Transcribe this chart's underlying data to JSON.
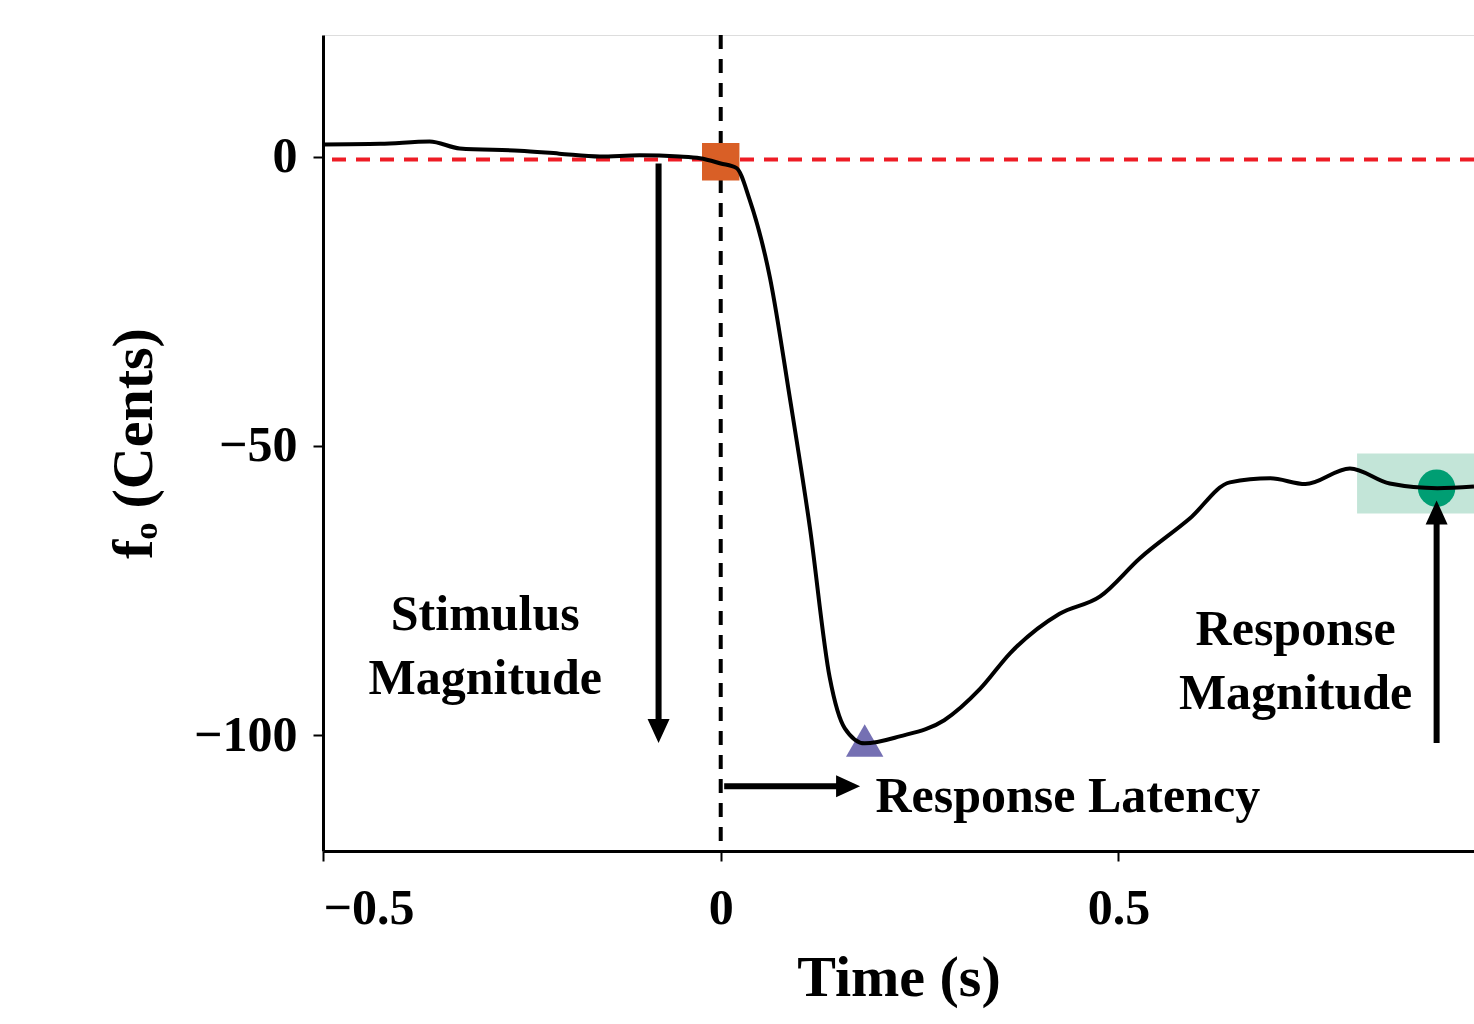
{
  "chart_data": {
    "type": "line",
    "xlabel": "Time (s)",
    "ylabel": "fₒ (Cents)",
    "xlim": [
      -0.5,
      0.947
    ],
    "ylim": [
      -120,
      21
    ],
    "xticks": [
      -0.5,
      0,
      0.5
    ],
    "yticks": [
      0,
      -50,
      -100
    ],
    "grid": false,
    "legend": false,
    "series": [
      {
        "color": "#000000",
        "line_style": "solid",
        "x": [
          -0.5,
          -0.428,
          -0.366,
          -0.328,
          -0.253,
          -0.203,
          -0.152,
          -0.102,
          -0.052,
          -0.026,
          0,
          0.02,
          0.036,
          0.062,
          0.087,
          0.112,
          0.137,
          0.156,
          0.181,
          0.225,
          0.281,
          0.326,
          0.364,
          0.426,
          0.477,
          0.527,
          0.59,
          0.64,
          0.691,
          0.735,
          0.791,
          0.841,
          0.901,
          0.947
        ],
        "values": [
          2.1,
          2.2,
          2.6,
          1.4,
          1.0,
          0.5,
          0,
          0.2,
          0,
          -0.3,
          -1.2,
          -2,
          -7.3,
          -21,
          -41.8,
          -64,
          -90,
          -98.8,
          -101.4,
          -100.2,
          -97.4,
          -92,
          -85.8,
          -79,
          -76,
          -69.4,
          -62.5,
          -56.3,
          -55.6,
          -56.6,
          -53.9,
          -56.5,
          -57.3,
          -57
        ]
      },
      {
        "type": "area",
        "color": "#c3e5d8",
        "x": [
          0.8,
          0.947
        ],
        "values": [
          null,
          null
        ],
        "lower": [
          -61.7,
          -61.7
        ],
        "upper": [
          -51.3,
          -51.3
        ]
      },
      {
        "type": "scatter",
        "marker": "square",
        "color": "#d95f26",
        "x": [
          0
        ],
        "values": [
          -0.9
        ]
      },
      {
        "type": "scatter",
        "marker": "triangle",
        "color": "#7570b3",
        "x": [
          0.181
        ],
        "values": [
          -100.9
        ]
      },
      {
        "type": "scatter",
        "marker": "circle",
        "color": "#009e73",
        "x": [
          0.9
        ],
        "values": [
          -57.3
        ]
      }
    ],
    "ref_lines": [
      {
        "axis": "y",
        "value": -0.5,
        "color": "#ee1c25",
        "line_style": "dashed"
      },
      {
        "axis": "x",
        "value": 0,
        "color": "#000000",
        "line_style": "dashed"
      }
    ],
    "annotations": [
      "Stimulus\nMagnitude",
      "Response Latency",
      "Response\nMagnitude"
    ]
  }
}
